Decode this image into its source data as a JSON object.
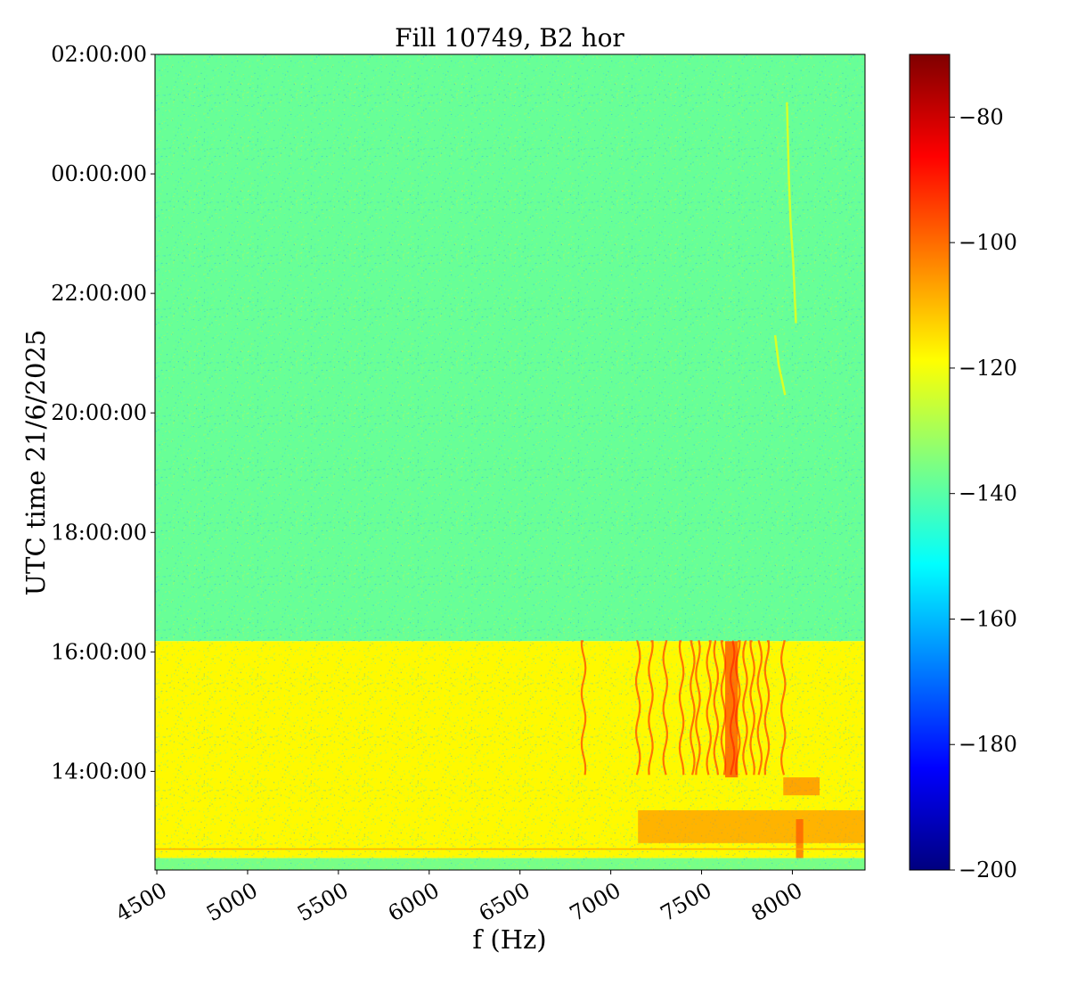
{
  "chart_data": {
    "type": "heatmap",
    "title": "Fill 10749, B2 hor",
    "xlabel": "f (Hz)",
    "ylabel": "UTC time 21/6/2025",
    "xlim": [
      4490,
      8400
    ],
    "x_ticks": [
      4500,
      5000,
      5500,
      6000,
      6500,
      7000,
      7500,
      8000
    ],
    "x_tick_labels": [
      "4500",
      "5000",
      "5500",
      "6000",
      "6500",
      "7000",
      "7500",
      "8000"
    ],
    "y_ticks": [
      14,
      16,
      18,
      20,
      22,
      24,
      26
    ],
    "y_tick_labels": [
      "14:00:00",
      "16:00:00",
      "18:00:00",
      "20:00:00",
      "22:00:00",
      "00:00:00",
      "02:00:00"
    ],
    "ylim_hours": [
      12.35,
      26.0
    ],
    "colorbar": {
      "colormap": "jet",
      "range": [
        -200,
        -70
      ],
      "ticks": [
        -80,
        -100,
        -120,
        -140,
        -160,
        -180,
        -200
      ],
      "tick_labels": [
        "−80",
        "−100",
        "−120",
        "−140",
        "−160",
        "−180",
        "−200"
      ]
    },
    "regions": [
      {
        "time_from": 16.18,
        "time_to": 26.0,
        "f_from": 4490,
        "f_to": 8400,
        "level_db": -138
      },
      {
        "time_from": 12.55,
        "time_to": 16.18,
        "f_from": 4490,
        "f_to": 8400,
        "level_db": -118
      },
      {
        "time_from": 12.35,
        "time_to": 12.55,
        "f_from": 4490,
        "f_to": 8400,
        "level_db": -136
      }
    ],
    "features": [
      {
        "type": "vertical_lines",
        "time_from": 13.9,
        "time_to": 16.18,
        "f": [
          6850,
          7150,
          7220,
          7300,
          7390,
          7450,
          7480,
          7540,
          7580,
          7620,
          7670,
          7700,
          7740,
          7780,
          7820,
          7860,
          7950
        ],
        "level_db": -98
      },
      {
        "type": "band",
        "time_from": 13.9,
        "time_to": 16.18,
        "f_from": 7630,
        "f_to": 7700,
        "level_db": -90
      },
      {
        "type": "band",
        "time_from": 12.8,
        "time_to": 13.35,
        "f_from": 7150,
        "f_to": 8400,
        "level_db": -103
      },
      {
        "type": "band",
        "time_from": 13.6,
        "time_to": 13.9,
        "f_from": 7950,
        "f_to": 8150,
        "level_db": -100
      },
      {
        "type": "band",
        "time_from": 12.55,
        "time_to": 13.2,
        "f_from": 8020,
        "f_to": 8060,
        "level_db": -95
      },
      {
        "type": "hline",
        "time": 12.7,
        "f_from": 4490,
        "f_to": 8400,
        "level_db": -108
      },
      {
        "type": "curve",
        "points": [
          [
            7960,
            20.3
          ],
          [
            7925,
            20.8
          ],
          [
            7905,
            21.3
          ]
        ],
        "level_db": -120
      },
      {
        "type": "curve",
        "points": [
          [
            8020,
            21.5
          ],
          [
            8005,
            22.5
          ],
          [
            7990,
            23.2
          ],
          [
            7980,
            24.0
          ],
          [
            7970,
            25.2
          ]
        ],
        "level_db": -121
      }
    ]
  }
}
